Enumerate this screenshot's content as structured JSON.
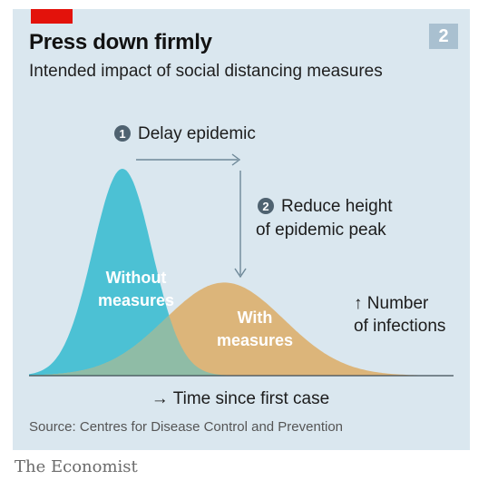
{
  "header": {
    "title": "Press down firmly",
    "subtitle": "Intended impact of social distancing measures",
    "badge": "2"
  },
  "chart_data": {
    "type": "area",
    "series": [
      {
        "name": "Without measures",
        "label_lines": [
          "Without",
          "measures"
        ],
        "color": "#4cc1d4",
        "peak_x": 0.22,
        "peak_y": 1.0,
        "spread": 0.07
      },
      {
        "name": "With measures",
        "label_lines": [
          "With",
          "measures"
        ],
        "color": "#dcb57a",
        "peak_x": 0.46,
        "peak_y": 0.45,
        "spread": 0.14
      }
    ],
    "x_axis_label": "→ Time since first case",
    "y_axis_label_lines": [
      "↑ Number",
      "of infections"
    ],
    "annotations": [
      {
        "number": "1",
        "lines": [
          "Delay epidemic"
        ]
      },
      {
        "number": "2",
        "lines": [
          "Reduce height",
          "of epidemic peak"
        ]
      }
    ],
    "grid": false,
    "legend": "none"
  },
  "footer": {
    "source": "Source: Centres for Disease Control and Prevention",
    "brand": "The Economist"
  },
  "colors": {
    "background": "#dae7ef",
    "accent": "#e3120b",
    "annotation": "#5f7a8c",
    "text": "#121212"
  }
}
